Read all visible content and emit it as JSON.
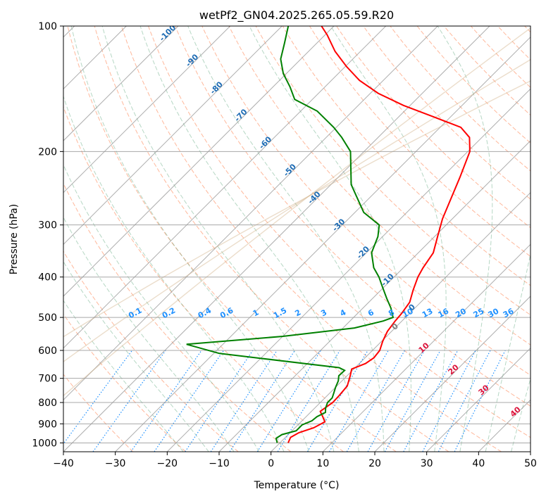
{
  "chart_data": {
    "type": "line",
    "diagram": "skew-T log-P",
    "title": "wetPf2_GN04.2025.265.05.59.R20",
    "xlabel": "Temperature (°C)",
    "ylabel": "Pressure (hPa)",
    "xlim": [
      -40,
      50
    ],
    "ylim": [
      1050,
      100
    ],
    "y_scale": "log",
    "grid": true,
    "x_ticks": [
      "−40",
      "−30",
      "−20",
      "−10",
      "0",
      "10",
      "20",
      "30",
      "40",
      "50"
    ],
    "y_ticks": [
      "100",
      "200",
      "300",
      "400",
      "500",
      "600",
      "700",
      "800",
      "900",
      "1000"
    ],
    "series": [
      {
        "color": "#ff0000",
        "role": "temperature",
        "points": [
          [
            1.6,
            1000
          ],
          [
            1.0,
            970
          ],
          [
            1.7,
            945
          ],
          [
            3.6,
            920
          ],
          [
            4.6,
            890
          ],
          [
            3.2,
            865
          ],
          [
            1.7,
            840
          ],
          [
            2.4,
            800
          ],
          [
            2.3,
            770
          ],
          [
            2.0,
            730
          ],
          [
            0.6,
            690
          ],
          [
            -0.4,
            665
          ],
          [
            1.2,
            645
          ],
          [
            1.7,
            625
          ],
          [
            1.4,
            600
          ],
          [
            0.2,
            570
          ],
          [
            -0.8,
            540
          ],
          [
            -1.3,
            510
          ],
          [
            -1.5,
            490
          ],
          [
            -2.1,
            460
          ],
          [
            -3.8,
            430
          ],
          [
            -5.4,
            400
          ],
          [
            -6.2,
            380
          ],
          [
            -7.1,
            350
          ],
          [
            -9.4,
            320
          ],
          [
            -11.9,
            290
          ],
          [
            -14.1,
            260
          ],
          [
            -16.6,
            230
          ],
          [
            -19.6,
            200
          ],
          [
            -22.4,
            185
          ],
          [
            -26.0,
            175
          ],
          [
            -33.4,
            165
          ],
          [
            -41.3,
            155
          ],
          [
            -48.5,
            145
          ],
          [
            -54.6,
            135
          ],
          [
            -59.8,
            125
          ],
          [
            -64.9,
            115
          ],
          [
            -69.6,
            105
          ],
          [
            -72.4,
            100
          ]
        ]
      },
      {
        "color": "#008000",
        "role": "dewpoint",
        "points": [
          [
            -0.5,
            1000
          ],
          [
            -1.6,
            975
          ],
          [
            -1.2,
            955
          ],
          [
            0.8,
            935
          ],
          [
            0.8,
            905
          ],
          [
            1.9,
            885
          ],
          [
            2.1,
            865
          ],
          [
            2.9,
            845
          ],
          [
            2.1,
            825
          ],
          [
            1.4,
            800
          ],
          [
            1.4,
            780
          ],
          [
            0.8,
            760
          ],
          [
            0.0,
            735
          ],
          [
            -0.7,
            710
          ],
          [
            -1.6,
            690
          ],
          [
            -1.5,
            670
          ],
          [
            -3.1,
            660
          ],
          [
            -28.9,
            610
          ],
          [
            -37.0,
            580
          ],
          [
            -20.0,
            555
          ],
          [
            -7.8,
            530
          ],
          [
            -3.6,
            510
          ],
          [
            -2.4,
            500
          ],
          [
            -4.6,
            475
          ],
          [
            -7.3,
            450
          ],
          [
            -10.6,
            420
          ],
          [
            -12.9,
            400
          ],
          [
            -15.7,
            380
          ],
          [
            -19.0,
            350
          ],
          [
            -20.9,
            320
          ],
          [
            -22.9,
            300
          ],
          [
            -28.3,
            280
          ],
          [
            -36.1,
            240
          ],
          [
            -42.6,
            200
          ],
          [
            -47.0,
            185
          ],
          [
            -50.5,
            175
          ],
          [
            -56.8,
            160
          ],
          [
            -63.4,
            150
          ],
          [
            -66.7,
            140
          ],
          [
            -70.6,
            130
          ],
          [
            -73.9,
            120
          ],
          [
            -76.2,
            110
          ],
          [
            -78.8,
            100
          ]
        ]
      }
    ],
    "dry_adiabat_labels": [],
    "moist_adiabat_labels": [
      "10",
      "20",
      "30",
      "40"
    ],
    "mixing_ratio_labels": [
      "0.1",
      "0.2",
      "0.4",
      "0.6",
      "1",
      "1.5",
      "2",
      "3",
      "4",
      "6",
      "8",
      "10",
      "13",
      "16",
      "20",
      "25",
      "30",
      "36"
    ],
    "isotherm_labels": [
      "-100",
      "-90",
      "-80",
      "-70",
      "-60",
      "-50",
      "-40",
      "-30",
      "-20",
      "-10",
      "0"
    ],
    "mixing_ratio_values": [
      0.1,
      0.2,
      0.4,
      0.6,
      1,
      1.5,
      2,
      3,
      4,
      6,
      8,
      10,
      13,
      16,
      20,
      25,
      30,
      36
    ],
    "moist_adiabat_values": [
      10,
      20,
      30,
      40
    ],
    "isotherm_label_values": [
      -100,
      -90,
      -80,
      -70,
      -60,
      -50,
      -40,
      -30,
      -20,
      -10,
      0
    ],
    "colors": {
      "isotherm_grid": "#9a9a9a",
      "pressure_grid": "#9a9a9a",
      "dry_adiabat": "#ffa07a",
      "moist_adiabat": "#2e8b57",
      "mixing_ratio": "#1e90ff",
      "isotherm_label": "#1f6db5",
      "moist_label": "#dc143c",
      "zero_label": "#7f7f7f",
      "curve_tan": "#d2b48c"
    }
  }
}
